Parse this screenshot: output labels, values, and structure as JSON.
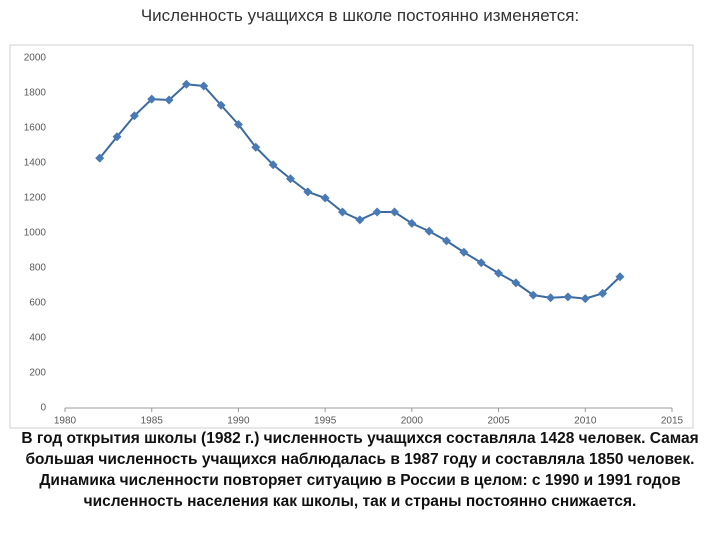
{
  "chart_data": {
    "type": "line",
    "title": "Численность учащихся в школе постоянно изменяется:",
    "caption": "В год открытия школы (1982 г.) численность учащихся составляла 1428 человек. Самая большая численность учащихся наблюдалась в 1987 году и составляла 1850 человек. Динамика численности повторяет ситуацию в России в целом: с 1990 и 1991 годов численность населения как школы, так и страны постоянно снижается.",
    "x": [
      1982,
      1983,
      1984,
      1985,
      1986,
      1987,
      1988,
      1989,
      1990,
      1991,
      1992,
      1993,
      1994,
      1995,
      1996,
      1997,
      1998,
      1999,
      2000,
      2001,
      2002,
      2003,
      2004,
      2005,
      2006,
      2007,
      2008,
      2009,
      2010,
      2011,
      2012
    ],
    "values": [
      1428,
      1550,
      1670,
      1765,
      1760,
      1850,
      1840,
      1730,
      1620,
      1490,
      1390,
      1310,
      1235,
      1200,
      1120,
      1075,
      1120,
      1120,
      1055,
      1010,
      955,
      890,
      830,
      770,
      715,
      645,
      630,
      635,
      625,
      655,
      750
    ],
    "color": "#3b6aa0",
    "xlim": [
      1980,
      2015
    ],
    "xticks": [
      1980,
      1985,
      1990,
      1995,
      2000,
      2005,
      2010,
      2015
    ],
    "ylim": [
      0,
      2000
    ],
    "yticks": [
      0,
      200,
      400,
      600,
      800,
      1000,
      1200,
      1400,
      1600,
      1800,
      2000
    ],
    "grid": false
  }
}
